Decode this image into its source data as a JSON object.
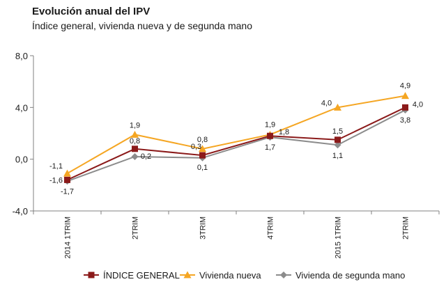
{
  "title": "Evolución anual del IPV",
  "subtitle": "Índice general, vivienda nueva y de segunda mano",
  "chart_data": {
    "type": "line",
    "categories": [
      "2014 1TRIM",
      "2TRIM",
      "3TRIM",
      "4TRIM",
      "2015 1TRIM",
      "2TRIM"
    ],
    "ylim": [
      -4.0,
      8.0
    ],
    "yticks": [
      "8,0",
      "4,0",
      "0,0",
      "-4,0"
    ],
    "grid": false,
    "legend_position": "bottom",
    "series": [
      {
        "name": "ÍNDICE GENERAL",
        "color": "#8b1a1a",
        "marker": "square",
        "values": [
          -1.6,
          0.8,
          0.3,
          1.8,
          1.5,
          4.0
        ],
        "labels": [
          "-1,6",
          "0,8",
          "0,3",
          "1,8",
          "1,5",
          "4,0"
        ]
      },
      {
        "name": "Vivienda nueva",
        "color": "#f5a623",
        "marker": "triangle",
        "values": [
          -1.1,
          1.9,
          0.8,
          1.9,
          4.0,
          4.9
        ],
        "labels": [
          "-1,1",
          "1,9",
          "0,8",
          "1,9",
          "4,0",
          "4,9"
        ]
      },
      {
        "name": "Vivienda de segunda mano",
        "color": "#8c8c8c",
        "marker": "diamond",
        "values": [
          -1.7,
          0.2,
          0.1,
          1.7,
          1.1,
          3.8
        ],
        "labels": [
          "-1,7",
          "0,2",
          "0,1",
          "1,7",
          "1,1",
          "3,8"
        ]
      }
    ]
  }
}
